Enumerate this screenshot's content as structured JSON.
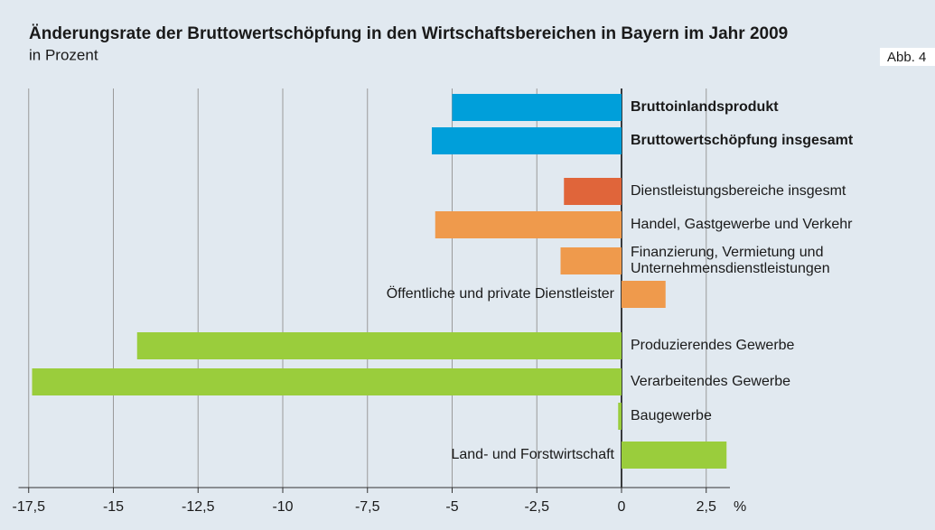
{
  "chart_data": {
    "type": "hbar",
    "title": "Änderungsrate der Bruttowertschöpfung in den Wirtschaftsbereichen in Bayern im Jahr 2009",
    "subtitle": "in Prozent",
    "figure_label": "Abb. 4",
    "x_unit": "%",
    "categories": [
      "Bruttoinlandsprodukt",
      "Bruttowertschöpfung insgesamt",
      "Dienstleistungsbereiche insgesmt",
      "Handel, Gastgewerbe und Verkehr",
      "Finanzierung, Vermietung und\nUnternehmensdienstleistungen",
      "Öffentliche und private Dienstleister",
      "Produzierendes Gewerbe",
      "Verarbeitendes Gewerbe",
      "Baugewerbe",
      "Land- und Forstwirtschaft"
    ],
    "values": [
      -5.0,
      -5.6,
      -1.7,
      -5.5,
      -1.8,
      1.3,
      -14.3,
      -17.4,
      -0.1,
      3.1
    ],
    "colors": [
      "#009fda",
      "#009fda",
      "#e0653a",
      "#ef9a4c",
      "#ef9a4c",
      "#ef9a4c",
      "#9acd3c",
      "#9acd3c",
      "#9acd3c",
      "#9acd3c"
    ],
    "xlim": [
      -17.8,
      3.2
    ],
    "xticks": [
      {
        "value": -17.5,
        "label": "-17,5"
      },
      -15,
      {
        "value": -12.5,
        "label": "-12,5"
      },
      -10,
      {
        "value": -7.5,
        "label": "-7,5"
      },
      -5,
      {
        "value": -2.5,
        "label": "-2,5"
      },
      0,
      {
        "value": 2.5,
        "label": "2,5"
      }
    ],
    "grid": true
  }
}
